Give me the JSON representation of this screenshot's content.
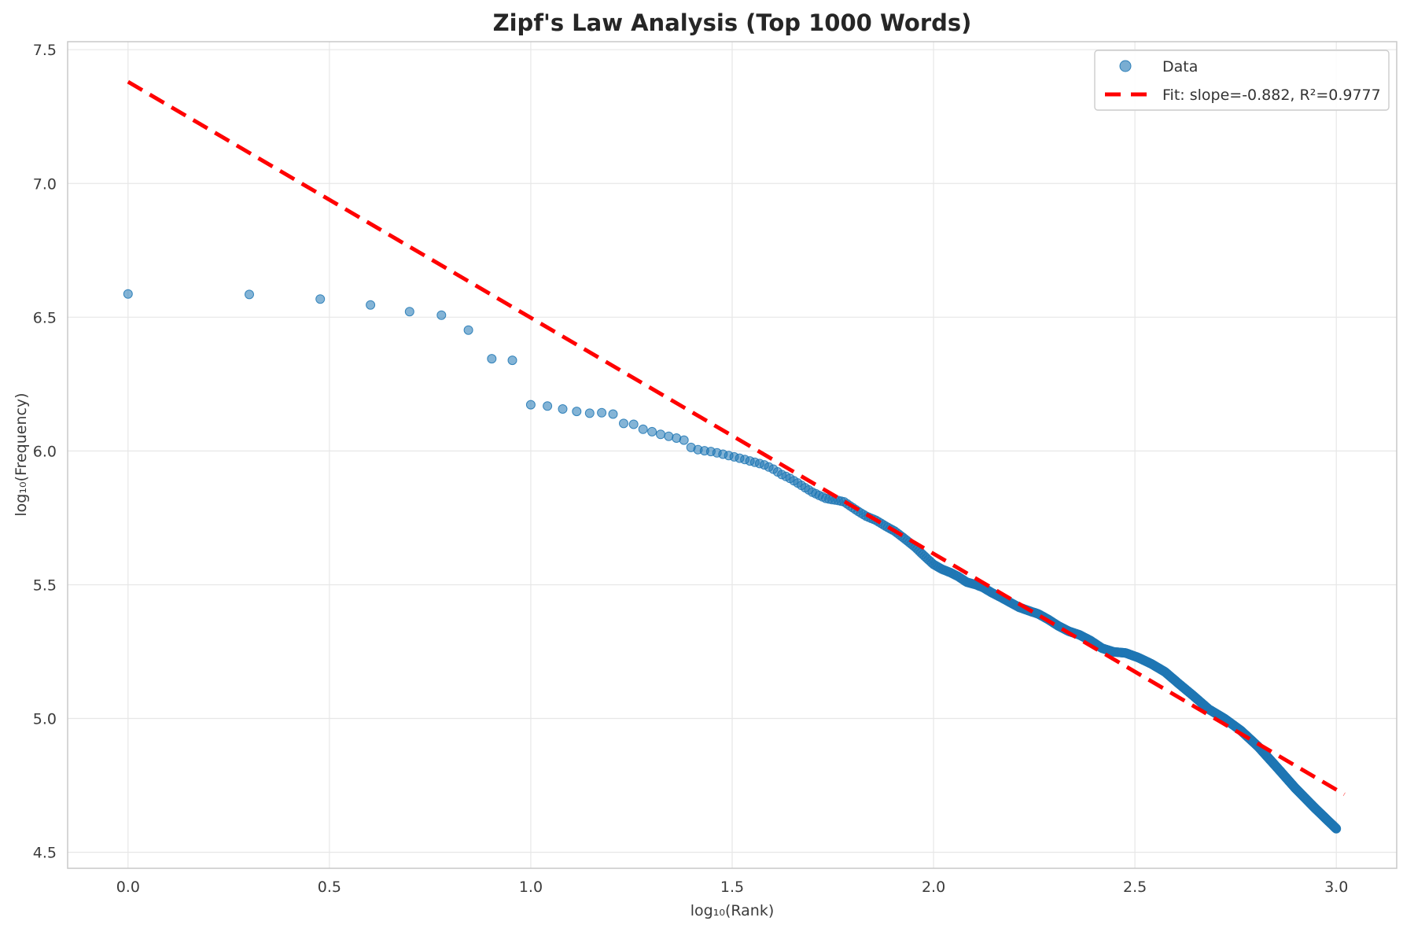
{
  "figure": {
    "background": "#ffffff"
  },
  "chart_data": {
    "type": "scatter",
    "title": "Zipf's Law Analysis (Top 1000 Words)",
    "xlabel": "log₁₀(Rank)",
    "ylabel": "log₁₀(Frequency)",
    "xlim": [
      -0.15,
      3.15
    ],
    "ylim": [
      4.44,
      7.53
    ],
    "xticks": [
      "0.0",
      "0.5",
      "1.0",
      "1.5",
      "2.0",
      "2.5",
      "3.0"
    ],
    "xtick_values": [
      0.0,
      0.5,
      1.0,
      1.5,
      2.0,
      2.5,
      3.0
    ],
    "yticks": [
      "4.5",
      "5.0",
      "5.5",
      "6.0",
      "6.5",
      "7.0",
      "7.5"
    ],
    "ytick_values": [
      4.5,
      5.0,
      5.5,
      6.0,
      6.5,
      7.0,
      7.5
    ],
    "grid": true,
    "legend_position": "upper right",
    "series": [
      {
        "name": "Data",
        "type": "scatter",
        "color": "#1f77b4",
        "alpha": 0.55,
        "n_points": 1000,
        "curve_anchors": [
          [
            0.0,
            6.587
          ],
          [
            0.301,
            6.585
          ],
          [
            0.477,
            6.568
          ],
          [
            0.602,
            6.546
          ],
          [
            0.699,
            6.521
          ],
          [
            0.778,
            6.508
          ],
          [
            0.845,
            6.452
          ],
          [
            0.903,
            6.345
          ],
          [
            0.954,
            6.34
          ],
          [
            1.0,
            6.173
          ],
          [
            1.041,
            6.168
          ],
          [
            1.079,
            6.157
          ],
          [
            1.114,
            6.148
          ],
          [
            1.146,
            6.141
          ],
          [
            1.176,
            6.143
          ],
          [
            1.204,
            6.138
          ],
          [
            1.23,
            6.103
          ],
          [
            1.255,
            6.1
          ],
          [
            1.279,
            6.081
          ],
          [
            1.301,
            6.072
          ],
          [
            1.322,
            6.062
          ],
          [
            1.342,
            6.055
          ],
          [
            1.362,
            6.048
          ],
          [
            1.38,
            6.041
          ],
          [
            1.398,
            6.013
          ],
          [
            1.415,
            6.005
          ],
          [
            1.431,
            6.001
          ],
          [
            1.447,
            5.998
          ],
          [
            1.462,
            5.993
          ],
          [
            1.477,
            5.988
          ],
          [
            1.505,
            5.978
          ],
          [
            1.531,
            5.968
          ],
          [
            1.556,
            5.958
          ],
          [
            1.58,
            5.948
          ],
          [
            1.602,
            5.932
          ],
          [
            1.623,
            5.912
          ],
          [
            1.643,
            5.898
          ],
          [
            1.663,
            5.88
          ],
          [
            1.681,
            5.863
          ],
          [
            1.699,
            5.846
          ],
          [
            1.716,
            5.834
          ],
          [
            1.732,
            5.823
          ],
          [
            1.748,
            5.818
          ],
          [
            1.763,
            5.815
          ],
          [
            1.778,
            5.81
          ],
          [
            1.806,
            5.781
          ],
          [
            1.833,
            5.756
          ],
          [
            1.857,
            5.741
          ],
          [
            1.881,
            5.719
          ],
          [
            1.903,
            5.701
          ],
          [
            1.929,
            5.671
          ],
          [
            1.954,
            5.641
          ],
          [
            1.978,
            5.606
          ],
          [
            2.0,
            5.576
          ],
          [
            2.021,
            5.558
          ],
          [
            2.041,
            5.546
          ],
          [
            2.061,
            5.531
          ],
          [
            2.083,
            5.509
          ],
          [
            2.104,
            5.501
          ],
          [
            2.124,
            5.489
          ],
          [
            2.146,
            5.469
          ],
          [
            2.167,
            5.453
          ],
          [
            2.19,
            5.434
          ],
          [
            2.212,
            5.416
          ],
          [
            2.236,
            5.403
          ],
          [
            2.26,
            5.391
          ],
          [
            2.284,
            5.371
          ],
          [
            2.31,
            5.346
          ],
          [
            2.336,
            5.326
          ],
          [
            2.362,
            5.313
          ],
          [
            2.39,
            5.291
          ],
          [
            2.418,
            5.263
          ],
          [
            2.447,
            5.249
          ],
          [
            2.477,
            5.245
          ],
          [
            2.508,
            5.228
          ],
          [
            2.54,
            5.205
          ],
          [
            2.574,
            5.175
          ],
          [
            2.609,
            5.13
          ],
          [
            2.645,
            5.085
          ],
          [
            2.683,
            5.035
          ],
          [
            2.722,
            5.0
          ],
          [
            2.763,
            4.955
          ],
          [
            2.806,
            4.895
          ],
          [
            2.851,
            4.82
          ],
          [
            2.898,
            4.74
          ],
          [
            2.947,
            4.665
          ],
          [
            3.0,
            4.588
          ]
        ]
      },
      {
        "name": "Fit: slope=-0.882, R²=0.9777",
        "type": "line",
        "style": "dashed",
        "color": "#ff0000",
        "slope": -0.882,
        "intercept": 7.38,
        "r_squared": 0.9777,
        "x_range": [
          0.0,
          3.02
        ]
      }
    ]
  }
}
